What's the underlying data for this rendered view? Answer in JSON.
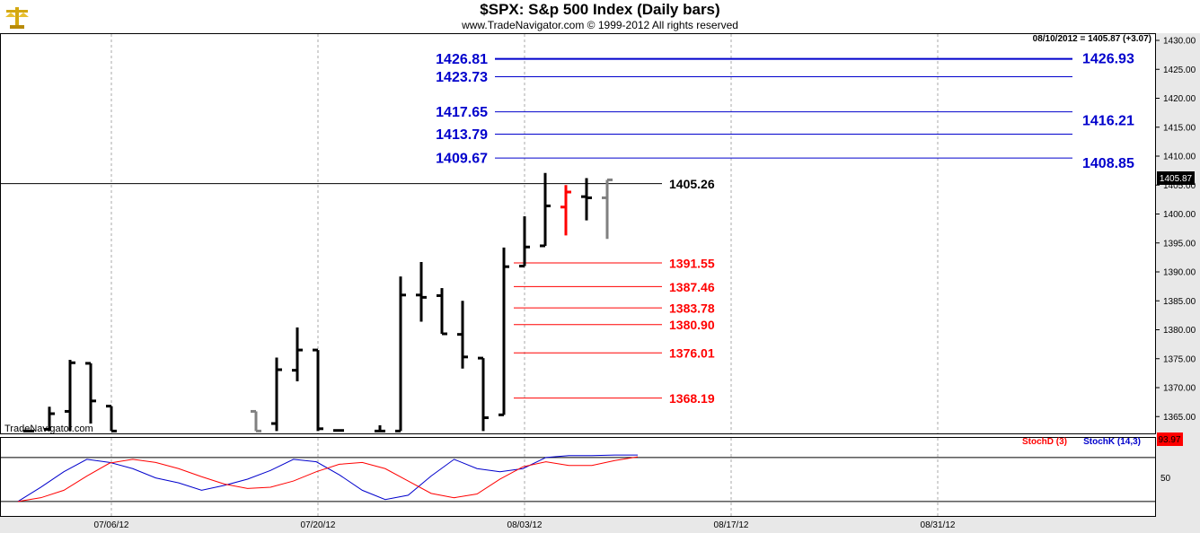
{
  "header": {
    "title": "$SPX:  S&p 500 Index  (Daily bars)",
    "subtitle": "www.TradeNavigator.com © 1999-2012 All rights reserved",
    "watermark": "TradeNavigator.com",
    "logo_icon": "gold-scales-icon"
  },
  "price_panel": {
    "readout": "08/10/2012 = 1405.87 (+3.07)",
    "current_price_label": "1405.87",
    "y_ticks": [
      "1430.00",
      "1425.00",
      "1420.00",
      "1415.00",
      "1410.00",
      "1405.00",
      "1400.00",
      "1395.00",
      "1390.00",
      "1385.00",
      "1380.00",
      "1375.00",
      "1370.00",
      "1365.00"
    ]
  },
  "stoch_panel": {
    "legend_d": "StochD (3)",
    "legend_k": "StochK (14,3)",
    "value_label": "93.97",
    "y_tick": "50"
  },
  "x_ticks": [
    "07/06/12",
    "07/20/12",
    "08/03/12",
    "08/17/12",
    "08/31/12"
  ],
  "colors": {
    "up_bar": "#000000",
    "down_bar_red": "#ff0000",
    "gray_bar": "#808080",
    "resistance": "#0000cc",
    "support": "#ff0000",
    "stoch_d": "#ff0000",
    "stoch_k": "#0000cc",
    "stoch_value_bg": "#ff0000"
  },
  "chart_data": {
    "type": "ohlc",
    "title": "$SPX:  S&p 500 Index  (Daily bars)",
    "ylim": [
      1362.3,
      1431.8
    ],
    "bars": [
      {
        "date": "06/29/12",
        "o": 1362.5,
        "h": 1362.5,
        "l": 1362.5,
        "c": 1362.5,
        "color": "black"
      },
      {
        "date": "07/02/12",
        "o": 1362.8,
        "h": 1366.7,
        "l": 1362.5,
        "c": 1365.5,
        "color": "black"
      },
      {
        "date": "07/03/12",
        "o": 1365.9,
        "h": 1374.8,
        "l": 1362.5,
        "c": 1374.3,
        "color": "black"
      },
      {
        "date": "07/05/12",
        "o": 1374.2,
        "h": 1374.2,
        "l": 1363.8,
        "c": 1367.7,
        "color": "black"
      },
      {
        "date": "07/06/12",
        "o": 1366.8,
        "h": 1366.8,
        "l": 1362.5,
        "c": 1362.5,
        "color": "black"
      },
      {
        "date": "07/17/12",
        "o": 1365.9,
        "h": 1365.9,
        "l": 1362.5,
        "c": 1362.5,
        "color": "gray"
      },
      {
        "date": "07/18/12",
        "o": 1363.8,
        "h": 1375.2,
        "l": 1362.5,
        "c": 1373.1,
        "color": "black"
      },
      {
        "date": "07/19/12",
        "o": 1373.0,
        "h": 1380.4,
        "l": 1371.1,
        "c": 1376.5,
        "color": "black"
      },
      {
        "date": "07/20/12",
        "o": 1376.5,
        "h": 1376.5,
        "l": 1362.5,
        "c": 1362.9,
        "color": "black"
      },
      {
        "date": "07/23/12",
        "o": 1362.6,
        "h": 1362.6,
        "l": 1362.5,
        "c": 1362.6,
        "color": "black"
      },
      {
        "date": "07/25/12",
        "o": 1362.5,
        "h": 1363.5,
        "l": 1362.5,
        "c": 1362.5,
        "color": "black"
      },
      {
        "date": "07/26/12",
        "o": 1362.5,
        "h": 1389.2,
        "l": 1362.5,
        "c": 1386.0,
        "color": "black"
      },
      {
        "date": "07/27/12",
        "o": 1386.0,
        "h": 1391.7,
        "l": 1381.4,
        "c": 1385.6,
        "color": "black"
      },
      {
        "date": "07/30/12",
        "o": 1385.9,
        "h": 1387.2,
        "l": 1379.3,
        "c": 1379.3,
        "color": "black"
      },
      {
        "date": "07/31/12",
        "o": 1379.2,
        "h": 1385.0,
        "l": 1373.3,
        "c": 1375.3,
        "color": "black"
      },
      {
        "date": "08/01/12",
        "o": 1375.1,
        "h": 1375.1,
        "l": 1362.5,
        "c": 1364.8,
        "color": "black"
      },
      {
        "date": "08/02/12",
        "o": 1365.3,
        "h": 1394.2,
        "l": 1365.3,
        "c": 1390.9,
        "color": "black"
      },
      {
        "date": "08/03/12",
        "o": 1391.0,
        "h": 1399.6,
        "l": 1391.0,
        "c": 1394.3,
        "color": "black"
      },
      {
        "date": "08/06/12",
        "o": 1394.5,
        "h": 1407.1,
        "l": 1394.5,
        "c": 1401.4,
        "color": "black"
      },
      {
        "date": "08/07/12",
        "o": 1401.2,
        "h": 1405.0,
        "l": 1396.3,
        "c": 1403.8,
        "color": "red"
      },
      {
        "date": "08/08/12",
        "o": 1403.0,
        "h": 1406.2,
        "l": 1398.9,
        "c": 1402.8,
        "color": "black"
      },
      {
        "date": "08/09/12",
        "o": 1402.8,
        "h": 1405.9,
        "l": 1395.7,
        "c": 1405.9,
        "color": "gray"
      }
    ],
    "levels": [
      {
        "value": 1426.81,
        "label": "1426.81",
        "side": "left",
        "color": "blue"
      },
      {
        "value": 1426.93,
        "label": "1426.93",
        "side": "right",
        "color": "blue"
      },
      {
        "value": 1423.73,
        "label": "1423.73",
        "side": "left",
        "color": "blue"
      },
      {
        "value": 1417.65,
        "label": "1417.65",
        "side": "left",
        "color": "blue"
      },
      {
        "value": 1416.21,
        "label": "1416.21",
        "side": "right",
        "color": "blue"
      },
      {
        "value": 1413.79,
        "label": "1413.79",
        "side": "left",
        "color": "blue"
      },
      {
        "value": 1409.67,
        "label": "1409.67",
        "side": "left",
        "color": "blue"
      },
      {
        "value": 1408.85,
        "label": "1408.85",
        "side": "right",
        "color": "blue"
      },
      {
        "value": 1405.26,
        "label": "1405.26",
        "side": "mid",
        "color": "black"
      },
      {
        "value": 1391.55,
        "label": "1391.55",
        "side": "mid",
        "color": "red"
      },
      {
        "value": 1387.46,
        "label": "1387.46",
        "side": "mid",
        "color": "red"
      },
      {
        "value": 1383.78,
        "label": "1383.78",
        "side": "mid",
        "color": "red"
      },
      {
        "value": 1380.9,
        "label": "1380.90",
        "side": "mid",
        "color": "red"
      },
      {
        "value": 1376.01,
        "label": "1376.01",
        "side": "mid",
        "color": "red"
      },
      {
        "value": 1368.19,
        "label": "1368.19",
        "side": "mid",
        "color": "red"
      }
    ],
    "stochastic": {
      "ylim": [
        0,
        100
      ],
      "stoch_d": [
        22,
        28,
        40,
        63,
        84,
        90,
        85,
        75,
        62,
        50,
        43,
        45,
        55,
        70,
        82,
        85,
        75,
        55,
        35,
        28,
        34,
        58,
        78,
        86,
        80,
        80,
        88,
        93.97
      ],
      "stoch_k": [
        22,
        45,
        70,
        90,
        85,
        75,
        60,
        52,
        40,
        48,
        58,
        72,
        90,
        86,
        65,
        40,
        25,
        32,
        63,
        90,
        75,
        70,
        75,
        93,
        96,
        96,
        97,
        97
      ]
    }
  }
}
